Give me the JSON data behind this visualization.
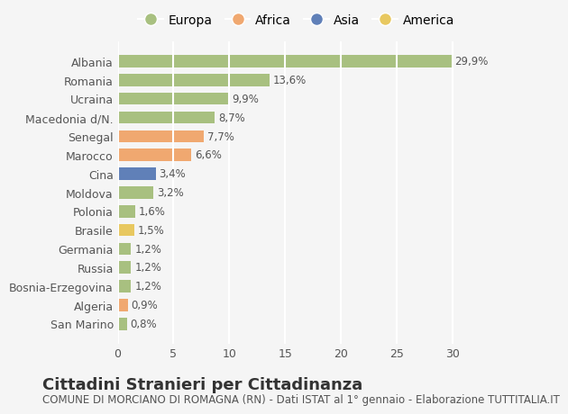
{
  "categories": [
    "Albania",
    "Romania",
    "Ucraina",
    "Macedonia d/N.",
    "Senegal",
    "Marocco",
    "Cina",
    "Moldova",
    "Polonia",
    "Brasile",
    "Germania",
    "Russia",
    "Bosnia-Erzegovina",
    "Algeria",
    "San Marino"
  ],
  "values": [
    29.9,
    13.6,
    9.9,
    8.7,
    7.7,
    6.6,
    3.4,
    3.2,
    1.6,
    1.5,
    1.2,
    1.2,
    1.2,
    0.9,
    0.8
  ],
  "labels": [
    "29,9%",
    "13,6%",
    "9,9%",
    "8,7%",
    "7,7%",
    "6,6%",
    "3,4%",
    "3,2%",
    "1,6%",
    "1,5%",
    "1,2%",
    "1,2%",
    "1,2%",
    "0,9%",
    "0,8%"
  ],
  "colors": [
    "#a8c080",
    "#a8c080",
    "#a8c080",
    "#a8c080",
    "#f0a870",
    "#f0a870",
    "#6080b8",
    "#a8c080",
    "#a8c080",
    "#e8c860",
    "#a8c080",
    "#a8c080",
    "#a8c080",
    "#f0a870",
    "#a8c080"
  ],
  "continent_names": [
    "Europa",
    "Africa",
    "Asia",
    "America"
  ],
  "continent_colors": [
    "#a8c080",
    "#f0a870",
    "#6080b8",
    "#e8c860"
  ],
  "xlim": [
    0,
    32
  ],
  "xticks": [
    0,
    5,
    10,
    15,
    20,
    25,
    30
  ],
  "title": "Cittadini Stranieri per Cittadinanza",
  "subtitle": "COMUNE DI MORCIANO DI ROMAGNA (RN) - Dati ISTAT al 1° gennaio - Elaborazione TUTTITALIA.IT",
  "bg_color": "#f5f5f5",
  "grid_color": "#ffffff",
  "bar_height": 0.65,
  "title_fontsize": 13,
  "subtitle_fontsize": 8.5,
  "label_fontsize": 8.5,
  "tick_fontsize": 9
}
